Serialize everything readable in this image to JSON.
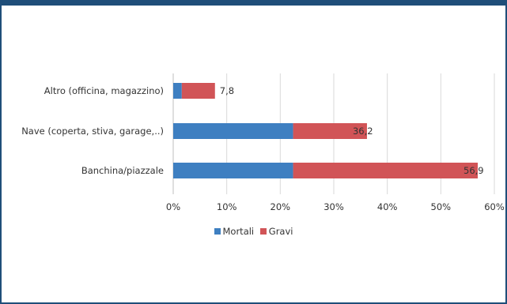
{
  "chart_data": {
    "type": "bar",
    "orientation": "horizontal",
    "stacked": true,
    "title": "",
    "xlabel": "",
    "ylabel": "",
    "categories": [
      "Altro (officina, magazzino)",
      "Nave (coperta, stiva, garage,..)",
      "Banchina/piazzale"
    ],
    "series": [
      {
        "name": "Mortali",
        "color": "#3e7fc1",
        "values": [
          1.6,
          22.4,
          22.4
        ]
      },
      {
        "name": "Gravi",
        "color": "#d15457",
        "values": [
          6.2,
          13.8,
          34.5
        ]
      }
    ],
    "totals": [
      "7,8",
      "36,2",
      "56,9"
    ],
    "xlim": [
      0,
      60
    ],
    "xticks": [
      0,
      10,
      20,
      30,
      40,
      50,
      60
    ],
    "xtick_labels": [
      "0%",
      "10%",
      "20%",
      "30%",
      "40%",
      "50%",
      "60%"
    ],
    "grid": true,
    "legend_position": "bottom"
  }
}
